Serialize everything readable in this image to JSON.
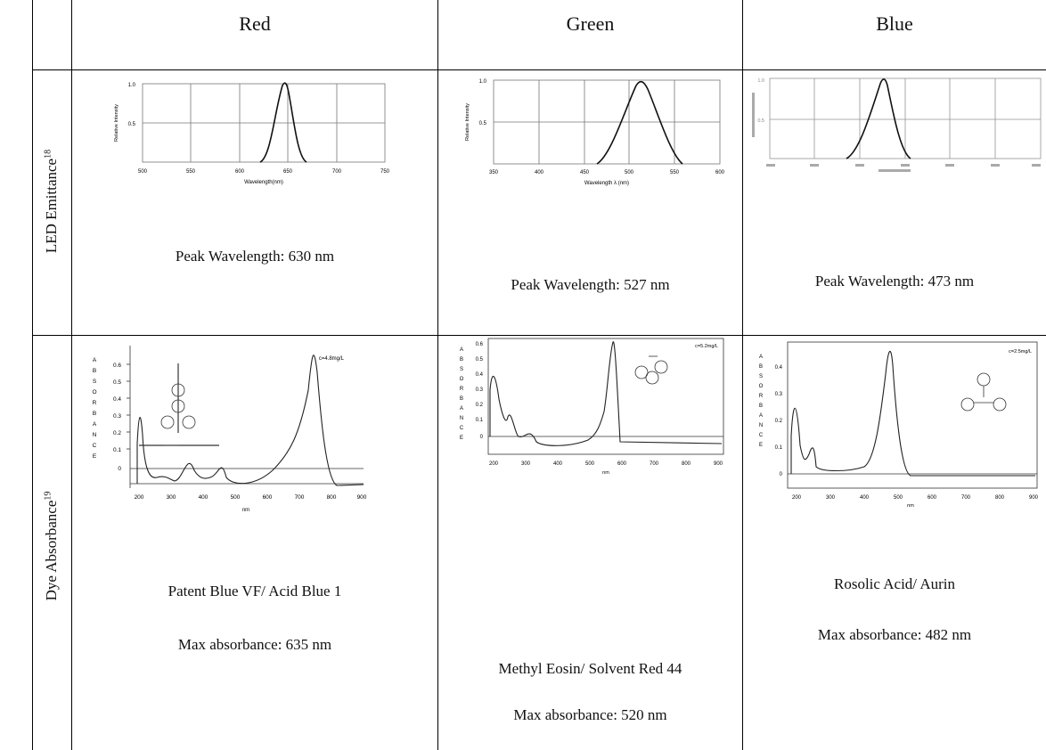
{
  "table": {
    "columns": [
      "Red",
      "Green",
      "Blue"
    ],
    "rows": {
      "led": {
        "label": "LED Emittance",
        "ref": "18"
      },
      "dye": {
        "label": "Dye Absorbance",
        "ref": "19"
      }
    }
  },
  "led": {
    "red": {
      "peak": "Peak Wavelength: 630 nm",
      "xticks": [
        "500",
        "550",
        "600",
        "650",
        "700",
        "750"
      ],
      "yticks": [
        "1.0",
        "0.5"
      ],
      "xlabel": "Wavelength(nm)",
      "ylabel": "Relative Intensity"
    },
    "green": {
      "peak": "Peak Wavelength: 527 nm",
      "xticks": [
        "350",
        "400",
        "450",
        "500",
        "550",
        "600"
      ],
      "yticks": [
        "1.0",
        "0.5"
      ],
      "xlabel": "Wavelength λ (nm)",
      "ylabel": "Relative Intensity"
    },
    "blue": {
      "peak": "Peak Wavelength: 473 nm",
      "yticks": [
        "1.0",
        "0.5"
      ]
    }
  },
  "dye": {
    "red": {
      "name": "Patent Blue VF/ Acid Blue 1",
      "max": "Max absorbance: 635 nm",
      "conc": "c=4.8mg/L",
      "xticks": [
        "200",
        "300",
        "400",
        "500",
        "600",
        "700",
        "800",
        "900"
      ],
      "yticks": [
        "0.6",
        "0.5",
        "0.4",
        "0.3",
        "0.2",
        "0.1",
        "0"
      ],
      "xlabel": "nm",
      "ylabel": [
        "A",
        "B",
        "S",
        "O",
        "R",
        "B",
        "A",
        "N",
        "C",
        "E"
      ]
    },
    "green": {
      "name": "Methyl Eosin/ Solvent Red 44",
      "max": "Max absorbance: 520 nm",
      "conc": "c=5.2mg/L",
      "xticks": [
        "200",
        "300",
        "400",
        "500",
        "600",
        "700",
        "800",
        "900"
      ],
      "yticks": [
        "0.6",
        "0.5",
        "0.4",
        "0.3",
        "0.2",
        "0.1",
        "0"
      ],
      "xlabel": "nm",
      "ylabel": [
        "A",
        "B",
        "S",
        "O",
        "R",
        "B",
        "A",
        "N",
        "C",
        "E"
      ]
    },
    "blue": {
      "name": "Rosolic Acid/ Aurin",
      "max": "Max absorbance: 482 nm",
      "conc": "c=2.5mg/L",
      "xticks": [
        "200",
        "300",
        "400",
        "500",
        "600",
        "700",
        "800",
        "900"
      ],
      "yticks": [
        "0.4",
        "0.3",
        "0.2",
        "0.1",
        "0"
      ],
      "xlabel": "nm",
      "ylabel": [
        "A",
        "B",
        "S",
        "O",
        "R",
        "B",
        "A",
        "N",
        "C",
        "E"
      ]
    }
  }
}
